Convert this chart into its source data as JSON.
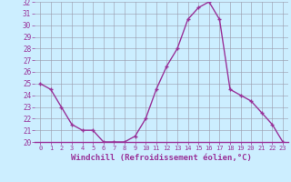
{
  "xlabel": "Windchill (Refroidissement éolien,°C)",
  "x": [
    0,
    1,
    2,
    3,
    4,
    5,
    6,
    7,
    8,
    9,
    10,
    11,
    12,
    13,
    14,
    15,
    16,
    17,
    18,
    19,
    20,
    21,
    22,
    23
  ],
  "y": [
    25.0,
    24.5,
    23.0,
    21.5,
    21.0,
    21.0,
    20.0,
    20.0,
    20.0,
    20.5,
    22.0,
    24.5,
    26.5,
    28.0,
    30.5,
    31.5,
    32.0,
    30.5,
    24.5,
    24.0,
    23.5,
    22.5,
    21.5,
    20.0
  ],
  "line_color": "#993399",
  "marker": "+",
  "bg_color": "#cceeff",
  "grid_color": "#9999aa",
  "ylim": [
    20,
    32
  ],
  "yticks": [
    20,
    21,
    22,
    23,
    24,
    25,
    26,
    27,
    28,
    29,
    30,
    31,
    32
  ],
  "xtick_labels": [
    "0",
    "1",
    "2",
    "3",
    "4",
    "5",
    "6",
    "7",
    "8",
    "9",
    "10",
    "11",
    "12",
    "13",
    "14",
    "15",
    "16",
    "17",
    "18",
    "19",
    "20",
    "21",
    "22",
    "23"
  ],
  "tick_color": "#993399",
  "label_color": "#993399",
  "font_family": "monospace"
}
